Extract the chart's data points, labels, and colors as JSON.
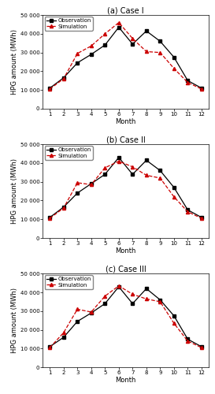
{
  "months": [
    1,
    2,
    3,
    4,
    5,
    6,
    7,
    8,
    9,
    10,
    11,
    12
  ],
  "cases": [
    {
      "title": "(a) Case I",
      "obs": [
        11000,
        16500,
        24500,
        29000,
        34000,
        43500,
        34500,
        41500,
        36000,
        27500,
        15000,
        11000
      ],
      "sim": [
        10500,
        16000,
        29500,
        33500,
        40000,
        46000,
        37500,
        30500,
        30000,
        21500,
        14000,
        10500
      ]
    },
    {
      "title": "(b) Case II",
      "obs": [
        11000,
        16500,
        24000,
        29000,
        34000,
        43000,
        34000,
        41500,
        36000,
        27000,
        15000,
        11000
      ],
      "sim": [
        10500,
        16000,
        29500,
        28500,
        37500,
        41000,
        38000,
        33500,
        32000,
        22000,
        14000,
        10500
      ]
    },
    {
      "title": "(c) Case III",
      "obs": [
        11000,
        16000,
        24500,
        29000,
        34000,
        43000,
        34000,
        42000,
        36000,
        27500,
        15000,
        11000
      ],
      "sim": [
        10500,
        18500,
        31000,
        29500,
        38000,
        43500,
        39000,
        36500,
        35000,
        23500,
        14000,
        10500
      ]
    }
  ],
  "ylim": [
    0,
    50000
  ],
  "yticks": [
    0,
    10000,
    20000,
    30000,
    40000,
    50000
  ],
  "ytick_labels": [
    "0",
    "10 000",
    "20 000",
    "30 000",
    "40 000",
    "50 000"
  ],
  "obs_color": "#000000",
  "sim_color": "#cc0000",
  "obs_marker": "s",
  "sim_marker": "^",
  "obs_linestyle": "-",
  "sim_linestyle": "--",
  "ylabel": "HPG amount (MWh)",
  "xlabel": "Month",
  "legend_labels": [
    "Observation",
    "Simulation"
  ],
  "marker_size": 3,
  "linewidth": 0.9,
  "title_fontsize": 7,
  "tick_fontsize": 5,
  "label_fontsize": 6,
  "legend_fontsize": 5
}
